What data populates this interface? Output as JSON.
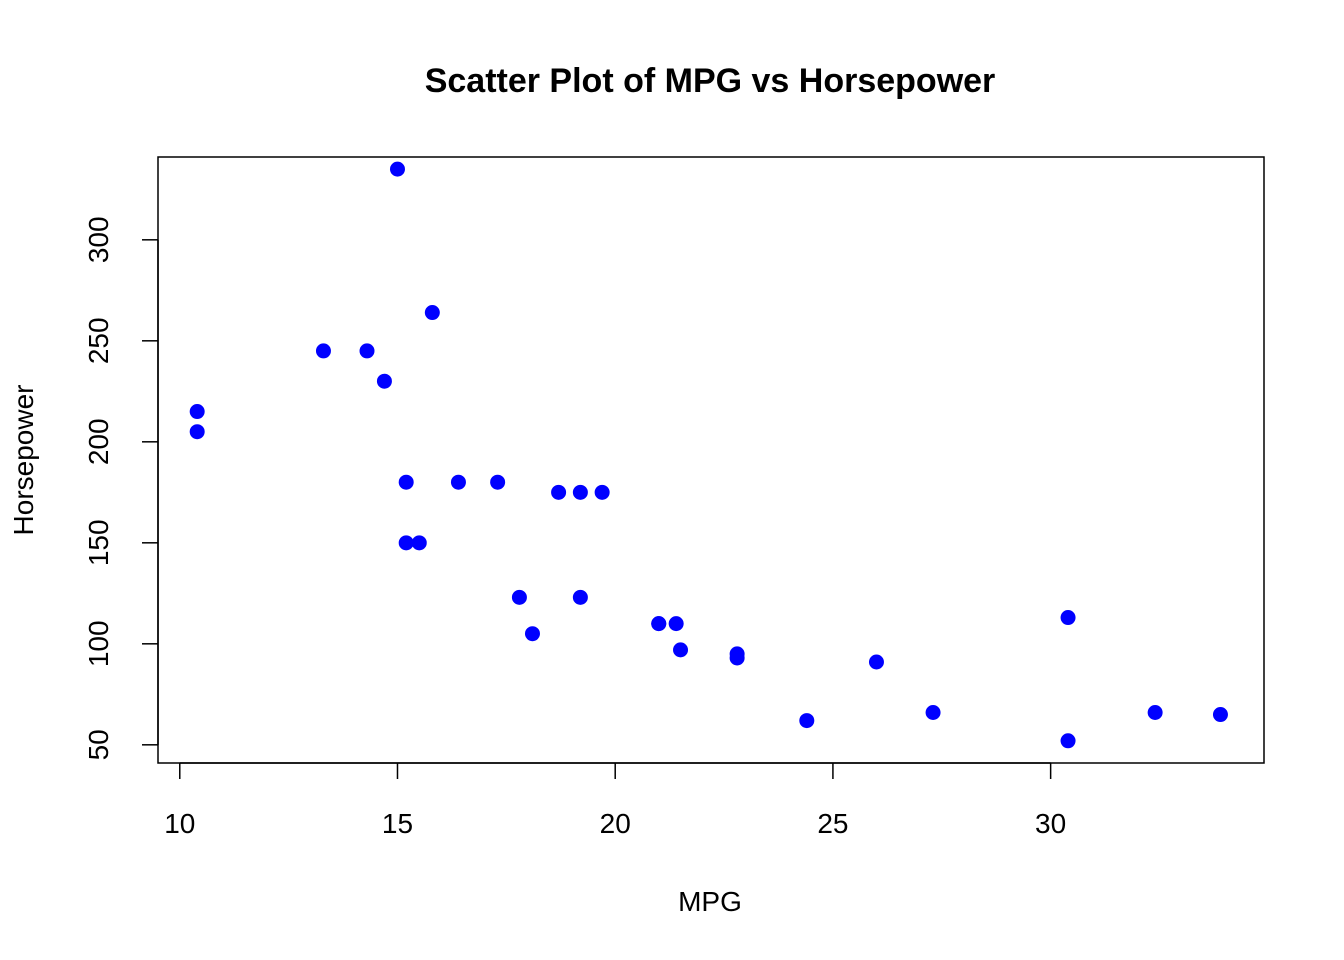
{
  "chart_data": {
    "type": "scatter",
    "title": "Scatter Plot of MPG vs Horsepower",
    "xlabel": "MPG",
    "ylabel": "Horsepower",
    "xlim": [
      9.5,
      34.9
    ],
    "ylim": [
      41,
      341
    ],
    "xticks": [
      10,
      15,
      20,
      25,
      30
    ],
    "yticks": [
      50,
      100,
      150,
      200,
      250,
      300
    ],
    "grid": false,
    "legend": "none",
    "point_color": "#0000ff",
    "points": [
      {
        "x": 15.0,
        "y": 335
      },
      {
        "x": 15.8,
        "y": 264
      },
      {
        "x": 13.3,
        "y": 245
      },
      {
        "x": 14.3,
        "y": 245
      },
      {
        "x": 14.7,
        "y": 230
      },
      {
        "x": 10.4,
        "y": 215
      },
      {
        "x": 10.4,
        "y": 205
      },
      {
        "x": 15.2,
        "y": 180
      },
      {
        "x": 16.4,
        "y": 180
      },
      {
        "x": 17.3,
        "y": 180
      },
      {
        "x": 18.7,
        "y": 175
      },
      {
        "x": 19.2,
        "y": 175
      },
      {
        "x": 19.7,
        "y": 175
      },
      {
        "x": 15.2,
        "y": 150
      },
      {
        "x": 15.5,
        "y": 150
      },
      {
        "x": 17.8,
        "y": 123
      },
      {
        "x": 19.2,
        "y": 123
      },
      {
        "x": 18.1,
        "y": 105
      },
      {
        "x": 21.0,
        "y": 110
      },
      {
        "x": 21.0,
        "y": 110
      },
      {
        "x": 21.4,
        "y": 110
      },
      {
        "x": 30.4,
        "y": 113
      },
      {
        "x": 21.5,
        "y": 97
      },
      {
        "x": 22.8,
        "y": 95
      },
      {
        "x": 22.8,
        "y": 93
      },
      {
        "x": 26.0,
        "y": 91
      },
      {
        "x": 24.4,
        "y": 62
      },
      {
        "x": 27.3,
        "y": 66
      },
      {
        "x": 32.4,
        "y": 66
      },
      {
        "x": 33.9,
        "y": 65
      },
      {
        "x": 30.4,
        "y": 52
      }
    ]
  }
}
